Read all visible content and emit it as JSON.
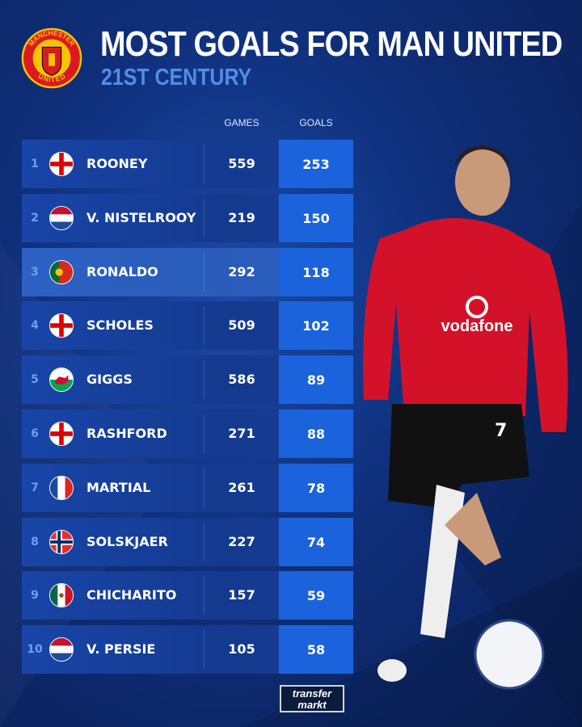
{
  "header": {
    "title": "MOST GOALS FOR MAN UNITED",
    "subtitle": "21ST CENTURY",
    "crest_text_top": "MANCHESTER",
    "crest_text_bottom": "UNITED"
  },
  "colors": {
    "row": "#1845a8",
    "goals_box": "#1b63dc",
    "subtitle": "#4f8fe8",
    "highlight_row": "#2b62c4"
  },
  "chart_data": {
    "type": "table",
    "columns": [
      "GAMES",
      "GOALS"
    ],
    "rows": [
      {
        "rank": "1",
        "flag": "england",
        "name": "ROONEY",
        "games": "559",
        "goals": "253"
      },
      {
        "rank": "2",
        "flag": "netherlands",
        "name": "V. NISTELROOY",
        "games": "219",
        "goals": "150"
      },
      {
        "rank": "3",
        "flag": "portugal",
        "name": "RONALDO",
        "games": "292",
        "goals": "118",
        "highlight": true
      },
      {
        "rank": "4",
        "flag": "england",
        "name": "SCHOLES",
        "games": "509",
        "goals": "102"
      },
      {
        "rank": "5",
        "flag": "wales",
        "name": "GIGGS",
        "games": "586",
        "goals": "89"
      },
      {
        "rank": "6",
        "flag": "england",
        "name": "RASHFORD",
        "games": "271",
        "goals": "88"
      },
      {
        "rank": "7",
        "flag": "france",
        "name": "MARTIAL",
        "games": "261",
        "goals": "78"
      },
      {
        "rank": "8",
        "flag": "norway",
        "name": "SOLSKJAER",
        "games": "227",
        "goals": "74"
      },
      {
        "rank": "9",
        "flag": "mexico",
        "name": "CHICHARITO",
        "games": "157",
        "goals": "59"
      },
      {
        "rank": "10",
        "flag": "netherlands",
        "name": "V. PERSIE",
        "games": "105",
        "goals": "58"
      }
    ]
  },
  "player_image": {
    "shirt_sponsor": "vodafone",
    "shirt_number": "7"
  },
  "footer": {
    "logo_line1": "transfer",
    "logo_line2": "markt"
  }
}
